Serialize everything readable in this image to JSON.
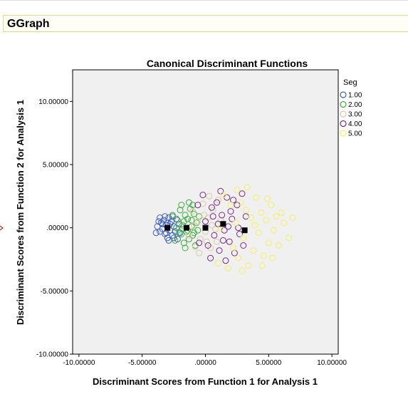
{
  "header": {
    "title": "GGraph"
  },
  "chart_data": {
    "type": "scatter",
    "title": "Canonical Discriminant Functions",
    "xlabel": "Discriminant Scores from Function 1 for Analysis 1",
    "ylabel": "Discriminant Scores from Function 2 for Analysis 1",
    "xlim": [
      -10.5,
      10.5
    ],
    "ylim": [
      -10,
      12.5
    ],
    "xticks": [
      -10,
      -5,
      0,
      5,
      10
    ],
    "xtick_labels": [
      "-10.00000",
      "-5.00000",
      ".00000",
      "5.00000",
      "10.00000"
    ],
    "yticks": [
      -10,
      -5,
      0,
      5,
      10
    ],
    "ytick_labels": [
      "-10.00000",
      "-5.00000",
      ".00000",
      "5.00000",
      "10.00000"
    ],
    "grid": false,
    "legend": {
      "title": "Seg",
      "position": "top-right"
    },
    "background": "#f0f0f0",
    "series": [
      {
        "name": "1.00",
        "color": "#3f5fbf",
        "centroid": [
          -3.0,
          0.0
        ],
        "points": [
          [
            -3.8,
            0.1
          ],
          [
            -3.6,
            -0.3
          ],
          [
            -3.5,
            0.4
          ],
          [
            -3.4,
            -0.1
          ],
          [
            -3.3,
            0.6
          ],
          [
            -3.2,
            -0.5
          ],
          [
            -3.1,
            0.2
          ],
          [
            -3.0,
            -0.8
          ],
          [
            -2.9,
            0.8
          ],
          [
            -2.8,
            -0.2
          ],
          [
            -2.7,
            0.5
          ],
          [
            -2.6,
            -0.6
          ],
          [
            -2.5,
            0.1
          ],
          [
            -2.4,
            -0.3
          ],
          [
            -2.3,
            0.7
          ],
          [
            -2.2,
            -0.9
          ],
          [
            -3.9,
            -0.4
          ],
          [
            -3.7,
            0.5
          ],
          [
            -3.2,
            0.9
          ],
          [
            -2.9,
            -1.0
          ],
          [
            -2.6,
            0.9
          ],
          [
            -2.1,
            0.3
          ],
          [
            -2.0,
            -0.4
          ],
          [
            -3.4,
            0.3
          ],
          [
            -3.1,
            -0.4
          ],
          [
            -2.8,
            0.3
          ],
          [
            -2.5,
            -0.8
          ],
          [
            -3.6,
            0.8
          ],
          [
            -2.3,
            0.0
          ],
          [
            -3.0,
            0.4
          ]
        ]
      },
      {
        "name": "2.00",
        "color": "#3aaf3a",
        "centroid": [
          -1.5,
          0.0
        ],
        "points": [
          [
            -2.6,
            1.0
          ],
          [
            -2.4,
            -1.0
          ],
          [
            -2.2,
            0.6
          ],
          [
            -2.0,
            1.4
          ],
          [
            -1.9,
            -0.5
          ],
          [
            -1.8,
            0.2
          ],
          [
            -1.7,
            -1.2
          ],
          [
            -1.6,
            1.0
          ],
          [
            -1.5,
            -0.3
          ],
          [
            -1.4,
            0.7
          ],
          [
            -1.3,
            -0.9
          ],
          [
            -1.2,
            1.5
          ],
          [
            -1.1,
            0.1
          ],
          [
            -1.0,
            -0.6
          ],
          [
            -0.9,
            1.1
          ],
          [
            -0.8,
            -1.4
          ],
          [
            -0.7,
            0.4
          ],
          [
            -0.6,
            -0.2
          ],
          [
            -1.9,
            1.8
          ],
          [
            -1.6,
            -1.6
          ],
          [
            -1.3,
            2.0
          ],
          [
            -2.3,
            0.0
          ],
          [
            -0.5,
            0.9
          ],
          [
            -1.0,
            1.8
          ],
          [
            -1.8,
            -0.1
          ],
          [
            -1.4,
            -0.2
          ],
          [
            -2.1,
            -0.4
          ],
          [
            -0.9,
            -0.4
          ],
          [
            -1.1,
            0.6
          ],
          [
            -1.7,
            0.5
          ]
        ]
      },
      {
        "name": "3.00",
        "color": "#d9c9a8",
        "centroid": [
          0.0,
          0.0
        ],
        "points": [
          [
            -1.0,
            1.3
          ],
          [
            -0.8,
            -1.5
          ],
          [
            -0.6,
            0.5
          ],
          [
            -0.4,
            -0.9
          ],
          [
            -0.2,
            1.9
          ],
          [
            0.0,
            -0.3
          ],
          [
            0.2,
            0.8
          ],
          [
            0.4,
            -1.6
          ],
          [
            0.6,
            1.4
          ],
          [
            0.8,
            -0.1
          ],
          [
            1.0,
            2.2
          ],
          [
            -0.5,
            -2.0
          ],
          [
            0.3,
            2.5
          ],
          [
            -0.9,
            0.2
          ],
          [
            0.9,
            -1.1
          ],
          [
            1.2,
            0.6
          ],
          [
            -1.3,
            -0.6
          ],
          [
            0.5,
            0.2
          ],
          [
            -0.1,
            1.0
          ],
          [
            0.1,
            -1.1
          ]
        ]
      },
      {
        "name": "4.00",
        "color": "#7a2a8a",
        "centroid": [
          1.4,
          0.3
        ],
        "points": [
          [
            -0.2,
            2.6
          ],
          [
            0.2,
            -1.4
          ],
          [
            0.5,
            1.6
          ],
          [
            0.7,
            -0.6
          ],
          [
            0.9,
            2.0
          ],
          [
            1.1,
            -1.8
          ],
          [
            1.3,
            1.0
          ],
          [
            1.5,
            -0.2
          ],
          [
            1.7,
            2.4
          ],
          [
            1.9,
            -1.1
          ],
          [
            2.1,
            0.7
          ],
          [
            2.3,
            -2.0
          ],
          [
            2.5,
            1.8
          ],
          [
            2.7,
            -0.5
          ],
          [
            2.9,
            2.7
          ],
          [
            0.0,
            0.5
          ],
          [
            0.4,
            -2.4
          ],
          [
            1.0,
            0.3
          ],
          [
            1.6,
            -2.6
          ],
          [
            2.0,
            1.3
          ],
          [
            2.6,
            0.0
          ],
          [
            3.0,
            -1.4
          ],
          [
            -0.5,
            -1.2
          ],
          [
            1.2,
            2.9
          ],
          [
            0.6,
            0.9
          ],
          [
            1.8,
            0.1
          ],
          [
            2.2,
            2.2
          ],
          [
            3.2,
            0.9
          ],
          [
            -0.6,
            1.8
          ],
          [
            1.4,
            -1.0
          ]
        ]
      },
      {
        "name": "5.00",
        "color": "#f5f063",
        "centroid": [
          3.1,
          -0.2
        ],
        "points": [
          [
            1.0,
            -2.8
          ],
          [
            1.4,
            2.6
          ],
          [
            1.8,
            -3.2
          ],
          [
            2.0,
            1.8
          ],
          [
            2.2,
            -1.6
          ],
          [
            2.4,
            0.4
          ],
          [
            2.6,
            -2.4
          ],
          [
            2.8,
            2.0
          ],
          [
            3.0,
            -0.8
          ],
          [
            3.2,
            1.4
          ],
          [
            3.4,
            -3.0
          ],
          [
            3.6,
            0.8
          ],
          [
            3.8,
            -1.8
          ],
          [
            4.0,
            2.4
          ],
          [
            4.2,
            -0.4
          ],
          [
            4.4,
            1.2
          ],
          [
            4.6,
            -2.2
          ],
          [
            4.8,
            0.6
          ],
          [
            5.0,
            -1.2
          ],
          [
            5.2,
            1.8
          ],
          [
            5.4,
            -0.2
          ],
          [
            5.6,
            0.9
          ],
          [
            5.8,
            -1.4
          ],
          [
            6.2,
            0.4
          ],
          [
            6.6,
            -0.8
          ],
          [
            6.9,
            0.8
          ],
          [
            3.3,
            3.2
          ],
          [
            2.9,
            -3.4
          ],
          [
            4.5,
            -3.0
          ],
          [
            1.2,
            0.0
          ],
          [
            3.9,
            0.2
          ],
          [
            4.9,
            2.3
          ],
          [
            2.5,
            3.0
          ],
          [
            5.3,
            -2.4
          ],
          [
            6.0,
            1.2
          ]
        ]
      }
    ]
  }
}
